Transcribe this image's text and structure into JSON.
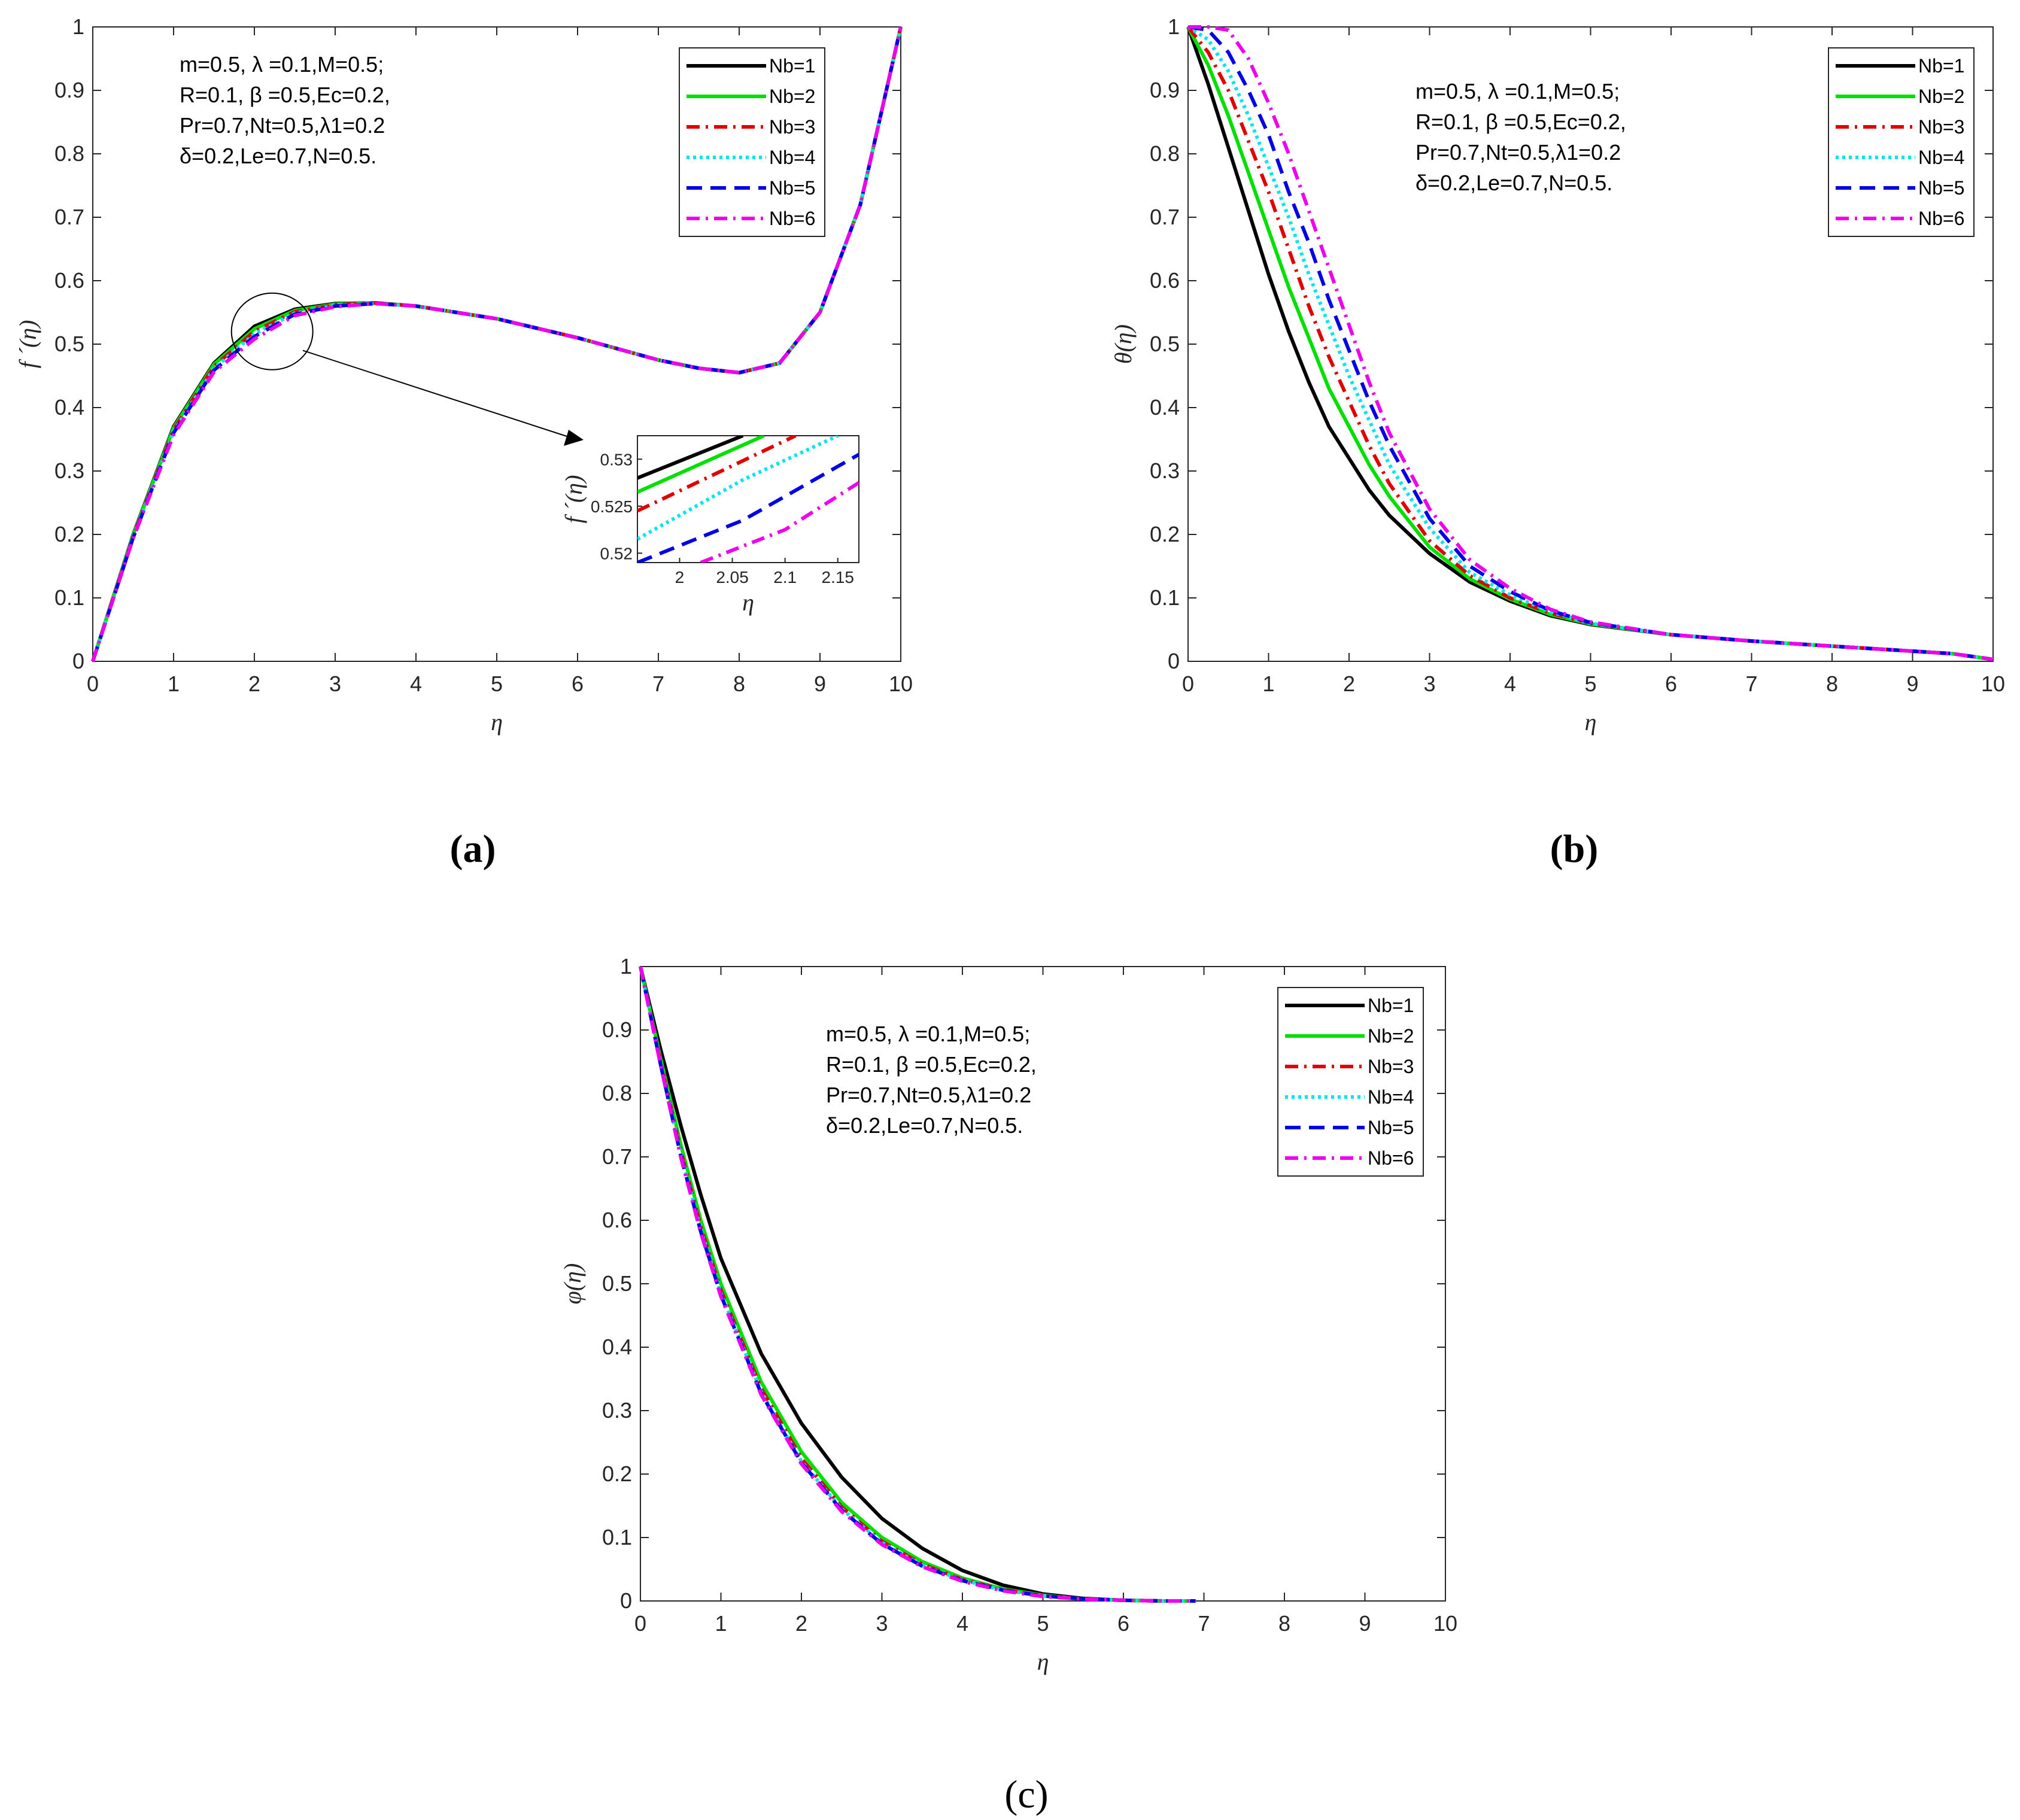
{
  "figure": {
    "description_labels": [
      "(a)",
      "(b)",
      "(c)"
    ]
  },
  "legend": {
    "entries": [
      "Nb=1",
      "Nb=2",
      "Nb=3",
      "Nb=4",
      "Nb=5",
      "Nb=6"
    ],
    "colors": [
      "#000000",
      "#00e000",
      "#e00000",
      "#00e5ee",
      "#0000e6",
      "#ee00ee"
    ],
    "dashes": [
      "none",
      "none",
      "dashdot",
      "dotted",
      "dashed",
      "dashdot"
    ]
  },
  "annotation": [
    "m=0.5, λ =0.1,M=0.5;",
    "R=0.1, β =0.5,Ec=0.2,",
    "Pr=0.7,Nt=0.5,λ1=0.2",
    "δ=0.2,Le=0.7,N=0.5."
  ],
  "chart_data": [
    {
      "type": "line",
      "panel_label": "a",
      "xlabel": "η",
      "ylabel": "f ´(η)",
      "xlim": [
        0,
        10
      ],
      "ylim": [
        0,
        1
      ],
      "xticks": [
        "0",
        "1",
        "2",
        "3",
        "4",
        "5",
        "6",
        "7",
        "8",
        "9",
        "10"
      ],
      "yticks": [
        "0",
        "0.1",
        "0.2",
        "0.3",
        "0.4",
        "0.5",
        "0.6",
        "0.7",
        "0.8",
        "0.9",
        "1"
      ],
      "x": [
        0,
        0.5,
        1,
        1.5,
        2,
        2.5,
        3,
        3.5,
        4,
        5,
        6,
        7,
        7.5,
        8,
        8.5,
        9,
        9.5,
        10
      ],
      "series": [
        {
          "name": "Nb=1",
          "values": [
            0,
            0.2,
            0.37,
            0.47,
            0.528,
            0.555,
            0.564,
            0.565,
            0.56,
            0.54,
            0.51,
            0.475,
            0.462,
            0.455,
            0.47,
            0.55,
            0.72,
            1.0
          ]
        },
        {
          "name": "Nb=2",
          "values": [
            0,
            0.199,
            0.368,
            0.468,
            0.524,
            0.553,
            0.563,
            0.565,
            0.56,
            0.54,
            0.51,
            0.475,
            0.462,
            0.455,
            0.47,
            0.55,
            0.72,
            1.0
          ]
        },
        {
          "name": "Nb=3",
          "values": [
            0,
            0.197,
            0.365,
            0.465,
            0.52,
            0.551,
            0.562,
            0.565,
            0.56,
            0.54,
            0.51,
            0.475,
            0.462,
            0.455,
            0.47,
            0.55,
            0.72,
            1.0
          ]
        },
        {
          "name": "Nb=4",
          "values": [
            0,
            0.196,
            0.362,
            0.462,
            0.516,
            0.549,
            0.561,
            0.564,
            0.56,
            0.54,
            0.51,
            0.475,
            0.462,
            0.455,
            0.47,
            0.55,
            0.72,
            1.0
          ]
        },
        {
          "name": "Nb=5",
          "values": [
            0,
            0.195,
            0.36,
            0.459,
            0.512,
            0.547,
            0.56,
            0.564,
            0.56,
            0.54,
            0.51,
            0.475,
            0.462,
            0.455,
            0.47,
            0.55,
            0.72,
            1.0
          ]
        },
        {
          "name": "Nb=6",
          "values": [
            0,
            0.194,
            0.357,
            0.456,
            0.508,
            0.545,
            0.559,
            0.564,
            0.56,
            0.54,
            0.51,
            0.475,
            0.462,
            0.455,
            0.47,
            0.55,
            0.72,
            1.0
          ]
        }
      ],
      "inset": {
        "xlabel": "η",
        "ylabel": "f ´(η)",
        "xlim": [
          1.96,
          2.17
        ],
        "ylim": [
          0.519,
          0.5325
        ],
        "xticks": [
          "2",
          "2.05",
          "2.1",
          "2.15"
        ],
        "xtick_values": [
          2,
          2.05,
          2.1,
          2.15
        ],
        "yticks": [
          "0.52",
          "0.525",
          "0.53"
        ],
        "ytick_values": [
          0.52,
          0.525,
          0.53
        ],
        "series": [
          {
            "name": "Nb=1",
            "x": [
              1.96,
              2.06
            ],
            "values": [
              0.528,
              0.5325
            ]
          },
          {
            "name": "Nb=2",
            "x": [
              1.96,
              2.08
            ],
            "values": [
              0.5265,
              0.5325
            ]
          },
          {
            "name": "Nb=3",
            "x": [
              1.96,
              2.11
            ],
            "values": [
              0.5245,
              0.5325
            ]
          },
          {
            "name": "Nb=4",
            "x": [
              1.96,
              2.06,
              2.15
            ],
            "values": [
              0.5215,
              0.5278,
              0.5325
            ]
          },
          {
            "name": "Nb=5",
            "x": [
              1.96,
              2.06,
              2.17
            ],
            "values": [
              0.519,
              0.5235,
              0.5305
            ]
          },
          {
            "name": "Nb=6",
            "x": [
              2.02,
              2.1,
              2.17
            ],
            "values": [
              0.519,
              0.5225,
              0.5275
            ]
          }
        ]
      }
    },
    {
      "type": "line",
      "panel_label": "b",
      "xlabel": "η",
      "ylabel": "θ(η)",
      "xlim": [
        0,
        10
      ],
      "ylim": [
        0,
        1
      ],
      "xticks": [
        "0",
        "1",
        "2",
        "3",
        "4",
        "5",
        "6",
        "7",
        "8",
        "9",
        "10"
      ],
      "yticks": [
        "0",
        "0.1",
        "0.2",
        "0.3",
        "0.4",
        "0.5",
        "0.6",
        "0.7",
        "0.8",
        "0.9",
        "1"
      ],
      "x": [
        0,
        0.25,
        0.5,
        0.75,
        1,
        1.25,
        1.5,
        1.75,
        2,
        2.25,
        2.5,
        3,
        3.5,
        4,
        4.5,
        5,
        6,
        7,
        8,
        9,
        9.5,
        10
      ],
      "series": [
        {
          "name": "Nb=1",
          "values": [
            1.0,
            0.91,
            0.81,
            0.71,
            0.61,
            0.52,
            0.44,
            0.37,
            0.32,
            0.27,
            0.23,
            0.17,
            0.125,
            0.095,
            0.072,
            0.058,
            0.042,
            0.032,
            0.024,
            0.016,
            0.012,
            0.003
          ]
        },
        {
          "name": "Nb=2",
          "values": [
            1.0,
            0.94,
            0.86,
            0.77,
            0.68,
            0.59,
            0.51,
            0.43,
            0.37,
            0.31,
            0.26,
            0.18,
            0.13,
            0.098,
            0.074,
            0.059,
            0.042,
            0.032,
            0.024,
            0.016,
            0.012,
            0.003
          ]
        },
        {
          "name": "Nb=3",
          "values": [
            1.0,
            0.96,
            0.9,
            0.82,
            0.74,
            0.65,
            0.56,
            0.48,
            0.41,
            0.34,
            0.28,
            0.19,
            0.135,
            0.1,
            0.076,
            0.06,
            0.042,
            0.032,
            0.024,
            0.016,
            0.012,
            0.003
          ]
        },
        {
          "name": "Nb=4",
          "values": [
            1.0,
            0.98,
            0.93,
            0.86,
            0.78,
            0.7,
            0.61,
            0.53,
            0.45,
            0.38,
            0.31,
            0.21,
            0.14,
            0.105,
            0.078,
            0.06,
            0.042,
            0.032,
            0.024,
            0.016,
            0.012,
            0.003
          ]
        },
        {
          "name": "Nb=5",
          "values": [
            1.0,
            0.995,
            0.96,
            0.9,
            0.83,
            0.74,
            0.66,
            0.57,
            0.49,
            0.41,
            0.34,
            0.225,
            0.15,
            0.11,
            0.08,
            0.061,
            0.042,
            0.032,
            0.024,
            0.016,
            0.012,
            0.003
          ]
        },
        {
          "name": "Nb=6",
          "values": [
            1.0,
            1.0,
            0.995,
            0.95,
            0.88,
            0.8,
            0.71,
            0.62,
            0.53,
            0.44,
            0.36,
            0.24,
            0.16,
            0.115,
            0.082,
            0.062,
            0.042,
            0.032,
            0.024,
            0.016,
            0.012,
            0.003
          ]
        }
      ]
    },
    {
      "type": "line",
      "panel_label": "c",
      "xlabel": "η",
      "ylabel": "φ(η)",
      "xlim": [
        0,
        10
      ],
      "ylim": [
        0,
        1
      ],
      "xticks": [
        "0",
        "1",
        "2",
        "3",
        "4",
        "5",
        "6",
        "7",
        "8",
        "9",
        "10"
      ],
      "yticks": [
        "0",
        "0.1",
        "0.2",
        "0.3",
        "0.4",
        "0.5",
        "0.6",
        "0.7",
        "0.8",
        "0.9",
        "1"
      ],
      "x": [
        0,
        0.25,
        0.5,
        0.75,
        1,
        1.5,
        2,
        2.5,
        3,
        3.5,
        4,
        4.5,
        5,
        5.5,
        6,
        6.5,
        6.9
      ],
      "series": [
        {
          "name": "Nb=1",
          "values": [
            1.0,
            0.87,
            0.75,
            0.64,
            0.54,
            0.39,
            0.28,
            0.195,
            0.13,
            0.083,
            0.048,
            0.025,
            0.011,
            0.004,
            0.001,
            0.0,
            0.0
          ]
        },
        {
          "name": "Nb=2",
          "values": [
            1.0,
            0.855,
            0.72,
            0.6,
            0.5,
            0.345,
            0.235,
            0.155,
            0.1,
            0.062,
            0.036,
            0.019,
            0.009,
            0.003,
            0.001,
            0.0,
            0.0
          ]
        },
        {
          "name": "Nb=3",
          "values": [
            1.0,
            0.85,
            0.71,
            0.59,
            0.49,
            0.335,
            0.225,
            0.148,
            0.094,
            0.058,
            0.034,
            0.018,
            0.008,
            0.003,
            0.001,
            0.0,
            0.0
          ]
        },
        {
          "name": "Nb=4",
          "values": [
            1.0,
            0.848,
            0.705,
            0.585,
            0.485,
            0.33,
            0.22,
            0.145,
            0.092,
            0.056,
            0.033,
            0.017,
            0.008,
            0.003,
            0.001,
            0.0,
            0.0
          ]
        },
        {
          "name": "Nb=5",
          "values": [
            1.0,
            0.846,
            0.702,
            0.582,
            0.482,
            0.327,
            0.218,
            0.143,
            0.09,
            0.055,
            0.032,
            0.017,
            0.008,
            0.003,
            0.001,
            0.0,
            0.0
          ]
        },
        {
          "name": "Nb=6",
          "values": [
            1.0,
            0.845,
            0.7,
            0.58,
            0.48,
            0.325,
            0.216,
            0.141,
            0.089,
            0.054,
            0.031,
            0.016,
            0.007,
            0.003,
            0.001,
            0.0,
            0.0
          ]
        }
      ]
    }
  ]
}
